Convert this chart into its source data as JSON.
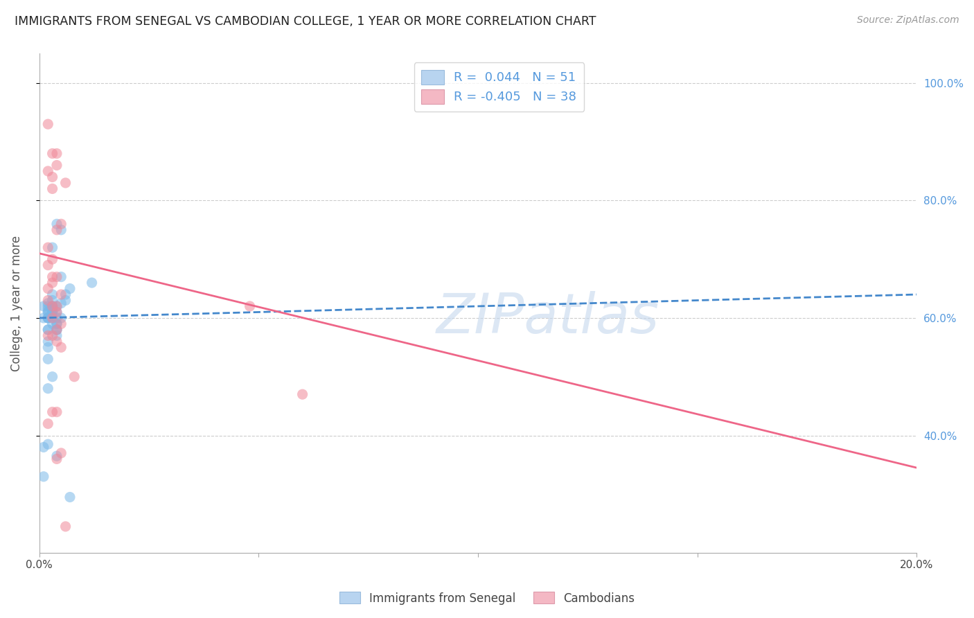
{
  "title": "IMMIGRANTS FROM SENEGAL VS CAMBODIAN COLLEGE, 1 YEAR OR MORE CORRELATION CHART",
  "source": "Source: ZipAtlas.com",
  "ylabel": "College, 1 year or more",
  "legend_line1": "R =  0.044   N = 51",
  "legend_line2": "R = -0.405   N = 38",
  "watermark": "ZIPatlas",
  "blue_scatter_x": [
    0.003,
    0.005,
    0.002,
    0.004,
    0.007,
    0.002,
    0.003,
    0.001,
    0.006,
    0.002,
    0.003,
    0.004,
    0.002,
    0.003,
    0.005,
    0.004,
    0.003,
    0.002,
    0.006,
    0.004,
    0.002,
    0.001,
    0.003,
    0.004,
    0.002,
    0.005,
    0.003,
    0.004,
    0.002,
    0.003,
    0.002,
    0.004,
    0.003,
    0.002,
    0.005,
    0.003,
    0.002,
    0.004,
    0.007,
    0.003,
    0.002,
    0.003,
    0.004,
    0.002,
    0.003,
    0.012,
    0.002,
    0.004,
    0.002,
    0.001,
    0.001
  ],
  "blue_scatter_y": [
    0.615,
    0.6,
    0.58,
    0.62,
    0.65,
    0.625,
    0.61,
    0.6,
    0.64,
    0.6,
    0.59,
    0.61,
    0.58,
    0.62,
    0.75,
    0.76,
    0.72,
    0.61,
    0.63,
    0.59,
    0.6,
    0.62,
    0.63,
    0.58,
    0.55,
    0.67,
    0.62,
    0.6,
    0.56,
    0.61,
    0.53,
    0.57,
    0.5,
    0.48,
    0.625,
    0.615,
    0.385,
    0.365,
    0.295,
    0.64,
    0.62,
    0.6,
    0.58,
    0.6,
    0.61,
    0.66,
    0.615,
    0.59,
    0.61,
    0.38,
    0.33
  ],
  "pink_scatter_x": [
    0.002,
    0.003,
    0.004,
    0.002,
    0.003,
    0.004,
    0.005,
    0.003,
    0.004,
    0.002,
    0.003,
    0.002,
    0.004,
    0.003,
    0.005,
    0.004,
    0.003,
    0.006,
    0.002,
    0.003,
    0.004,
    0.005,
    0.002,
    0.003,
    0.004,
    0.002,
    0.003,
    0.004,
    0.005,
    0.003,
    0.002,
    0.004,
    0.06,
    0.005,
    0.004,
    0.048,
    0.008,
    0.006
  ],
  "pink_scatter_y": [
    0.93,
    0.88,
    0.86,
    0.85,
    0.84,
    0.88,
    0.76,
    0.82,
    0.75,
    0.72,
    0.7,
    0.69,
    0.67,
    0.67,
    0.64,
    0.62,
    0.66,
    0.83,
    0.65,
    0.62,
    0.61,
    0.59,
    0.63,
    0.57,
    0.58,
    0.57,
    0.6,
    0.56,
    0.55,
    0.44,
    0.42,
    0.44,
    0.47,
    0.37,
    0.36,
    0.62,
    0.5,
    0.245
  ],
  "blue_line_x": [
    0.0,
    0.2
  ],
  "blue_line_y": [
    0.6,
    0.64
  ],
  "pink_line_x": [
    0.0,
    0.2
  ],
  "pink_line_y": [
    0.71,
    0.345
  ],
  "blue_scatter_color": "#7ab8e8",
  "pink_scatter_color": "#f08898",
  "blue_line_color": "#4488cc",
  "pink_line_color": "#ee6688",
  "legend_blue_patch": "#b8d4f0",
  "legend_pink_patch": "#f4b8c4",
  "right_axis_color": "#5599dd",
  "xlim": [
    0.0,
    0.2
  ],
  "ylim": [
    0.2,
    1.05
  ],
  "yticks": [
    0.4,
    0.6,
    0.8,
    1.0
  ],
  "ytick_labels": [
    "40.0%",
    "60.0%",
    "80.0%",
    "100.0%"
  ],
  "xticks": [
    0.0,
    0.05,
    0.1,
    0.15,
    0.2
  ],
  "xtick_labels": [
    "0.0%",
    "",
    "",
    "",
    "20.0%"
  ]
}
